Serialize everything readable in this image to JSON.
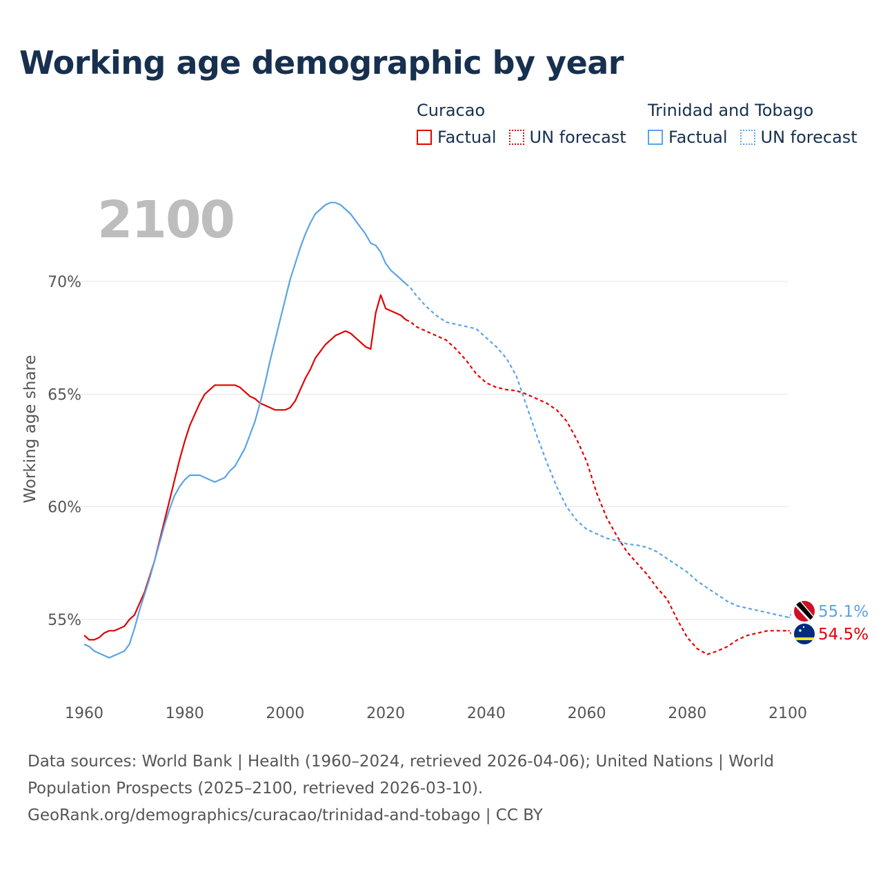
{
  "title": "Working age demographic by year",
  "legend": {
    "curacao": {
      "name": "Curacao",
      "factual": "Factual",
      "forecast": "UN forecast",
      "color": "#e00000"
    },
    "tt": {
      "name": "Trinidad and Tobago",
      "factual": "Factual",
      "forecast": "UN forecast",
      "color": "#5aa3e6"
    }
  },
  "year_label": "2100",
  "end_labels": {
    "tt": "55.1%",
    "curacao": "54.5%"
  },
  "icons": {
    "tt_flag": "trinidad-and-tobago-flag-icon",
    "curacao_flag": "curacao-flag-icon"
  },
  "footer": {
    "line1": "Data sources: World Bank | Health (1960–2024, retrieved 2026-04-06); United Nations | World",
    "line2": "Population Prospects (2025–2100, retrieved 2026-03-10).",
    "line3": "GeoRank.org/demographics/curacao/trinidad-and-tobago | CC BY"
  },
  "chart_data": {
    "type": "line",
    "title": "Working age demographic by year",
    "xlabel": "",
    "ylabel": "Working age share",
    "xlim": [
      1960,
      2100
    ],
    "ylim": [
      52,
      75
    ],
    "x_ticks": [
      1960,
      1980,
      2000,
      2020,
      2040,
      2060,
      2080,
      2100
    ],
    "x_tick_labels": [
      "1960",
      "1980",
      "2000",
      "2020",
      "2040",
      "2060",
      "2080",
      "2100"
    ],
    "y_ticks": [
      55,
      60,
      65,
      70
    ],
    "y_tick_labels": [
      "55%",
      "60%",
      "65%",
      "70%"
    ],
    "grid": true,
    "factual_end_year": 2024,
    "series": [
      {
        "name": "Curacao",
        "color": "#e00000",
        "points": [
          [
            1960,
            54.3
          ],
          [
            1961,
            54.1
          ],
          [
            1962,
            54.1
          ],
          [
            1963,
            54.2
          ],
          [
            1964,
            54.4
          ],
          [
            1965,
            54.5
          ],
          [
            1966,
            54.5
          ],
          [
            1967,
            54.6
          ],
          [
            1968,
            54.7
          ],
          [
            1969,
            55.0
          ],
          [
            1970,
            55.2
          ],
          [
            1971,
            55.7
          ],
          [
            1972,
            56.2
          ],
          [
            1973,
            56.9
          ],
          [
            1974,
            57.6
          ],
          [
            1975,
            58.5
          ],
          [
            1976,
            59.4
          ],
          [
            1977,
            60.3
          ],
          [
            1978,
            61.2
          ],
          [
            1979,
            62.1
          ],
          [
            1980,
            62.9
          ],
          [
            1981,
            63.6
          ],
          [
            1982,
            64.1
          ],
          [
            1983,
            64.6
          ],
          [
            1984,
            65.0
          ],
          [
            1985,
            65.2
          ],
          [
            1986,
            65.4
          ],
          [
            1987,
            65.4
          ],
          [
            1988,
            65.4
          ],
          [
            1989,
            65.4
          ],
          [
            1990,
            65.4
          ],
          [
            1991,
            65.3
          ],
          [
            1992,
            65.1
          ],
          [
            1993,
            64.9
          ],
          [
            1994,
            64.8
          ],
          [
            1995,
            64.6
          ],
          [
            1996,
            64.5
          ],
          [
            1997,
            64.4
          ],
          [
            1998,
            64.3
          ],
          [
            1999,
            64.3
          ],
          [
            2000,
            64.3
          ],
          [
            2001,
            64.4
          ],
          [
            2002,
            64.7
          ],
          [
            2003,
            65.2
          ],
          [
            2004,
            65.7
          ],
          [
            2005,
            66.1
          ],
          [
            2006,
            66.6
          ],
          [
            2007,
            66.9
          ],
          [
            2008,
            67.2
          ],
          [
            2009,
            67.4
          ],
          [
            2010,
            67.6
          ],
          [
            2011,
            67.7
          ],
          [
            2012,
            67.8
          ],
          [
            2013,
            67.7
          ],
          [
            2014,
            67.5
          ],
          [
            2015,
            67.3
          ],
          [
            2016,
            67.1
          ],
          [
            2017,
            67.0
          ],
          [
            2018,
            68.6
          ],
          [
            2019,
            69.4
          ],
          [
            2020,
            68.8
          ],
          [
            2021,
            68.7
          ],
          [
            2022,
            68.6
          ],
          [
            2023,
            68.5
          ],
          [
            2024,
            68.3
          ],
          [
            2025,
            68.2
          ],
          [
            2026,
            68.0
          ],
          [
            2028,
            67.8
          ],
          [
            2030,
            67.6
          ],
          [
            2032,
            67.4
          ],
          [
            2034,
            67.0
          ],
          [
            2036,
            66.5
          ],
          [
            2038,
            65.9
          ],
          [
            2040,
            65.5
          ],
          [
            2042,
            65.3
          ],
          [
            2044,
            65.2
          ],
          [
            2046,
            65.15
          ],
          [
            2048,
            65.0
          ],
          [
            2050,
            64.8
          ],
          [
            2052,
            64.6
          ],
          [
            2054,
            64.3
          ],
          [
            2056,
            63.8
          ],
          [
            2058,
            63.0
          ],
          [
            2060,
            62.0
          ],
          [
            2062,
            60.6
          ],
          [
            2064,
            59.5
          ],
          [
            2066,
            58.7
          ],
          [
            2068,
            58.0
          ],
          [
            2070,
            57.5
          ],
          [
            2072,
            57.0
          ],
          [
            2074,
            56.4
          ],
          [
            2076,
            55.9
          ],
          [
            2078,
            55.0
          ],
          [
            2080,
            54.2
          ],
          [
            2082,
            53.7
          ],
          [
            2084,
            53.45
          ],
          [
            2086,
            53.6
          ],
          [
            2088,
            53.8
          ],
          [
            2090,
            54.1
          ],
          [
            2092,
            54.3
          ],
          [
            2094,
            54.4
          ],
          [
            2096,
            54.5
          ],
          [
            2098,
            54.5
          ],
          [
            2100,
            54.5
          ]
        ]
      },
      {
        "name": "Trinidad and Tobago",
        "color": "#5aa3e6",
        "points": [
          [
            1960,
            53.9
          ],
          [
            1961,
            53.8
          ],
          [
            1962,
            53.6
          ],
          [
            1963,
            53.5
          ],
          [
            1964,
            53.4
          ],
          [
            1965,
            53.3
          ],
          [
            1966,
            53.4
          ],
          [
            1967,
            53.5
          ],
          [
            1968,
            53.6
          ],
          [
            1969,
            53.9
          ],
          [
            1970,
            54.6
          ],
          [
            1971,
            55.4
          ],
          [
            1972,
            56.1
          ],
          [
            1973,
            56.8
          ],
          [
            1974,
            57.6
          ],
          [
            1975,
            58.4
          ],
          [
            1976,
            59.2
          ],
          [
            1977,
            59.9
          ],
          [
            1978,
            60.5
          ],
          [
            1979,
            60.9
          ],
          [
            1980,
            61.2
          ],
          [
            1981,
            61.4
          ],
          [
            1982,
            61.4
          ],
          [
            1983,
            61.4
          ],
          [
            1984,
            61.3
          ],
          [
            1985,
            61.2
          ],
          [
            1986,
            61.1
          ],
          [
            1987,
            61.2
          ],
          [
            1988,
            61.3
          ],
          [
            1989,
            61.6
          ],
          [
            1990,
            61.8
          ],
          [
            1991,
            62.2
          ],
          [
            1992,
            62.6
          ],
          [
            1993,
            63.2
          ],
          [
            1994,
            63.8
          ],
          [
            1995,
            64.6
          ],
          [
            1996,
            65.5
          ],
          [
            1997,
            66.5
          ],
          [
            1998,
            67.4
          ],
          [
            1999,
            68.3
          ],
          [
            2000,
            69.2
          ],
          [
            2001,
            70.1
          ],
          [
            2002,
            70.8
          ],
          [
            2003,
            71.5
          ],
          [
            2004,
            72.1
          ],
          [
            2005,
            72.6
          ],
          [
            2006,
            73.0
          ],
          [
            2007,
            73.2
          ],
          [
            2008,
            73.4
          ],
          [
            2009,
            73.5
          ],
          [
            2010,
            73.5
          ],
          [
            2011,
            73.4
          ],
          [
            2012,
            73.2
          ],
          [
            2013,
            73.0
          ],
          [
            2014,
            72.7
          ],
          [
            2015,
            72.4
          ],
          [
            2016,
            72.1
          ],
          [
            2017,
            71.7
          ],
          [
            2018,
            71.6
          ],
          [
            2019,
            71.3
          ],
          [
            2020,
            70.8
          ],
          [
            2021,
            70.5
          ],
          [
            2022,
            70.3
          ],
          [
            2023,
            70.1
          ],
          [
            2024,
            69.9
          ],
          [
            2025,
            69.7
          ],
          [
            2026,
            69.4
          ],
          [
            2028,
            68.9
          ],
          [
            2030,
            68.5
          ],
          [
            2032,
            68.2
          ],
          [
            2034,
            68.1
          ],
          [
            2036,
            68.0
          ],
          [
            2038,
            67.9
          ],
          [
            2040,
            67.5
          ],
          [
            2042,
            67.1
          ],
          [
            2044,
            66.6
          ],
          [
            2046,
            65.8
          ],
          [
            2048,
            64.5
          ],
          [
            2050,
            63.2
          ],
          [
            2052,
            62.0
          ],
          [
            2054,
            60.9
          ],
          [
            2056,
            60.0
          ],
          [
            2058,
            59.4
          ],
          [
            2060,
            59.0
          ],
          [
            2062,
            58.8
          ],
          [
            2064,
            58.6
          ],
          [
            2066,
            58.5
          ],
          [
            2068,
            58.35
          ],
          [
            2070,
            58.3
          ],
          [
            2072,
            58.2
          ],
          [
            2074,
            58.0
          ],
          [
            2076,
            57.7
          ],
          [
            2078,
            57.4
          ],
          [
            2080,
            57.1
          ],
          [
            2082,
            56.7
          ],
          [
            2084,
            56.4
          ],
          [
            2086,
            56.1
          ],
          [
            2088,
            55.8
          ],
          [
            2090,
            55.6
          ],
          [
            2092,
            55.5
          ],
          [
            2094,
            55.4
          ],
          [
            2096,
            55.3
          ],
          [
            2098,
            55.2
          ],
          [
            2100,
            55.1
          ]
        ]
      }
    ]
  }
}
